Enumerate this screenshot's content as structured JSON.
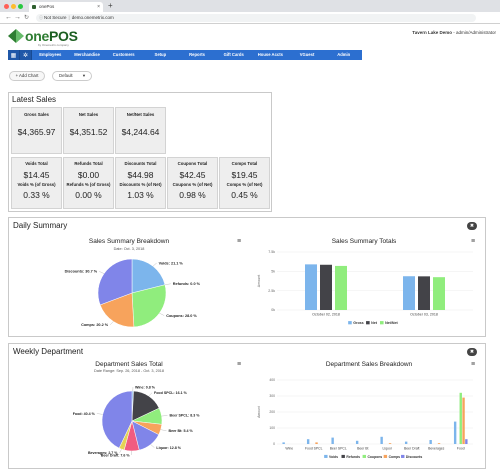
{
  "browser": {
    "tab_title": "onePos",
    "url_prefix": "Not Secure",
    "url": "demo.onemetrix.com"
  },
  "header": {
    "logo_one": "one",
    "logo_pos": "POS",
    "logo_sub": "by Onemetrix company",
    "location": "Tavern Lake Demo",
    "user_sep": " - ",
    "user": "admin/Administrator"
  },
  "menu": {
    "items": [
      "Employees",
      "Merchandise",
      "Customers",
      "Setup",
      "Reports",
      "Gift Cards",
      "House Accts",
      "VGuest",
      "Admin"
    ]
  },
  "toolbar": {
    "add_chart": "+ Add Chart",
    "view_value": "Default"
  },
  "latest_sales": {
    "title": "Latest Sales",
    "top": [
      {
        "label": "Gross Sales",
        "value": "$4,365.97"
      },
      {
        "label": "Net Sales",
        "value": "$4,351.52"
      },
      {
        "label": "Net/Net Sales",
        "value": "$4,244.64"
      }
    ],
    "bottom": [
      {
        "label": "Voids Total",
        "value": "$14.45",
        "sub_label": "Voids % (of Gross)",
        "sub_value": "0.33 %"
      },
      {
        "label": "Refunds Total",
        "value": "$0.00",
        "sub_label": "Refunds % (of Gross)",
        "sub_value": "0.00 %"
      },
      {
        "label": "Discounts Total",
        "value": "$44.98",
        "sub_label": "Discounts % (of Net)",
        "sub_value": "1.03 %"
      },
      {
        "label": "Coupons Total",
        "value": "$42.45",
        "sub_label": "Coupons % (of Net)",
        "sub_value": "0.98 %"
      },
      {
        "label": "Comps Total",
        "value": "$19.45",
        "sub_label": "Comps % (of Net)",
        "sub_value": "0.45 %"
      }
    ]
  },
  "daily_summary": {
    "title": "Daily Summary",
    "pie_title": "Sales Summary Breakdown",
    "pie_subtitle": "Date: Oct. 3, 2018",
    "bar_title": "Sales Summary Totals"
  },
  "weekly_department": {
    "title": "Weekly Department",
    "pie_title": "Department Sales Total",
    "pie_subtitle": "Date Range: Sep. 26, 2018 - Oct. 3, 2018",
    "bar_title": "Department Sales Breakdown"
  },
  "colors": {
    "blue": "#7cb5ec",
    "dark": "#434348",
    "green": "#90ed7d",
    "orange": "#f7a35c",
    "purple": "#8085e9",
    "pink": "#f15c80",
    "yellow": "#e4d354",
    "teal": "#2b908f",
    "menu": "#2c6fd0"
  },
  "chart_data": [
    {
      "type": "pie",
      "title": "Sales Summary Breakdown",
      "subtitle": "Date: Oct. 3, 2018",
      "slices": [
        {
          "label": "Voids: 21.1 %",
          "value": 21.1,
          "color": "#7cb5ec"
        },
        {
          "label": "Refunds: 0.0 %",
          "value": 0.0,
          "color": "#434348"
        },
        {
          "label": "Coupons: 28.0 %",
          "value": 28.0,
          "color": "#90ed7d"
        },
        {
          "label": "Comps: 20.2 %",
          "value": 20.2,
          "color": "#f7a35c"
        },
        {
          "label": "Discounts: 30.7 %",
          "value": 30.7,
          "color": "#8085e9"
        }
      ]
    },
    {
      "type": "bar",
      "title": "Sales Summary Totals",
      "ylabel": "Amount",
      "categories": [
        "October 02, 2018",
        "October 03, 2018"
      ],
      "ylim": [
        0,
        7500
      ],
      "yticks": [
        "7.5k",
        "5k",
        "2.5k",
        "0k"
      ],
      "ytick_values": [
        7500,
        5000,
        2500,
        0
      ],
      "series": [
        {
          "name": "Gross",
          "color": "#7cb5ec",
          "values": [
            5900,
            4365.97
          ]
        },
        {
          "name": "Net",
          "color": "#434348",
          "values": [
            5850,
            4351.52
          ]
        },
        {
          "name": "Net/Net",
          "color": "#90ed7d",
          "values": [
            5700,
            4244.64
          ]
        }
      ]
    },
    {
      "type": "pie",
      "title": "Department Sales Total",
      "subtitle": "Date Range: Sep. 26, 2018 - Oct. 3, 2018",
      "slices": [
        {
          "label": "Wine: 0.8 %",
          "value": 0.8,
          "color": "#7cb5ec"
        },
        {
          "label": "Food SPCL: 16.1 %",
          "value": 16.1,
          "color": "#434348"
        },
        {
          "label": "Beer SPCL: 8.3 %",
          "value": 8.3,
          "color": "#90ed7d"
        },
        {
          "label": "Beer Bt: 5.4 %",
          "value": 5.4,
          "color": "#f7a35c"
        },
        {
          "label": "Liquor: 12.8 %",
          "value": 12.8,
          "color": "#8085e9"
        },
        {
          "label": "Beer Draft: 7.6 %",
          "value": 7.6,
          "color": "#f15c80"
        },
        {
          "label": "Beverages: 2.7 %",
          "value": 2.7,
          "color": "#e4d354"
        },
        {
          "label": "Food: 40.4 %",
          "value": 40.4,
          "color": "#8085e9"
        }
      ]
    },
    {
      "type": "bar",
      "title": "Department Sales Breakdown",
      "ylabel": "Amount",
      "categories": [
        "Wine",
        "Food SPCL",
        "Beer SPCL",
        "Beer Bt",
        "Liquor",
        "Beer Draft",
        "Beverages",
        "Food"
      ],
      "ylim": [
        0,
        400
      ],
      "yticks": [
        "400",
        "300",
        "200",
        "100",
        "0"
      ],
      "ytick_values": [
        400,
        300,
        200,
        100,
        0
      ],
      "series": [
        {
          "name": "Voids",
          "color": "#7cb5ec",
          "values": [
            10,
            30,
            40,
            20,
            45,
            15,
            25,
            140
          ]
        },
        {
          "name": "Refunds",
          "color": "#434348",
          "values": [
            0,
            0,
            0,
            0,
            0,
            0,
            0,
            0
          ]
        },
        {
          "name": "Coupons",
          "color": "#90ed7d",
          "values": [
            0,
            0,
            0,
            0,
            0,
            0,
            0,
            320
          ]
        },
        {
          "name": "Comps",
          "color": "#f7a35c",
          "values": [
            0,
            10,
            0,
            0,
            5,
            0,
            5,
            290
          ]
        },
        {
          "name": "Discounts",
          "color": "#8085e9",
          "values": [
            0,
            0,
            0,
            0,
            0,
            0,
            0,
            30
          ]
        }
      ]
    }
  ]
}
